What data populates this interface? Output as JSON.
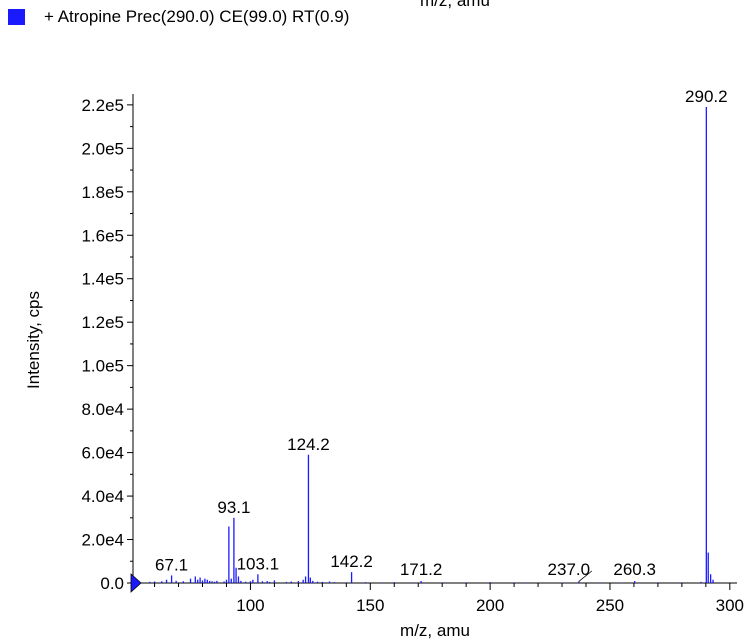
{
  "chart_data": {
    "type": "bar",
    "title": "",
    "cut_off_header_text": "m/z, amu",
    "legend": {
      "label": "+ Atropine Prec(290.0) CE(99.0) RT(0.9)",
      "color": "#1a1aff",
      "position": "top-left"
    },
    "xlabel": "m/z, amu",
    "ylabel": "Intensity, cps",
    "xlim": [
      51,
      303
    ],
    "ylim": [
      0,
      225000
    ],
    "x_ticks": [
      100,
      150,
      200,
      250,
      300
    ],
    "x_tick_labels": [
      "100",
      "150",
      "200",
      "250",
      "300"
    ],
    "y_ticks": [
      0,
      20000,
      40000,
      60000,
      80000,
      100000,
      120000,
      140000,
      160000,
      180000,
      200000,
      220000
    ],
    "y_tick_labels": [
      "0.0",
      "2.0e4",
      "4.0e4",
      "6.0e4",
      "8.0e4",
      "1.0e5",
      "1.2e5",
      "1.4e5",
      "1.6e5",
      "1.8e5",
      "2.0e5",
      "2.2e5"
    ],
    "grid": false,
    "bar_color": "#1a1aff",
    "series": [
      {
        "x": [
          58,
          60,
          63,
          65,
          67.1,
          69,
          72,
          75,
          77,
          78,
          79,
          80,
          81,
          82,
          83,
          84,
          85,
          86,
          89,
          90,
          91,
          92,
          93.1,
          94,
          95,
          96,
          98,
          100,
          101,
          103.1,
          105,
          107,
          108,
          110,
          115,
          117,
          120,
          122,
          123,
          124.2,
          125,
          126,
          128,
          130,
          133,
          135,
          140,
          142.2,
          148,
          155,
          160,
          168,
          171.2,
          180,
          190,
          200,
          210,
          215,
          230,
          237.0,
          245,
          255,
          260.3,
          270,
          280,
          288,
          290.2,
          291,
          292,
          293
        ],
        "y": [
          500,
          700,
          800,
          1500,
          3500,
          1000,
          800,
          2000,
          3000,
          1500,
          2500,
          1200,
          2000,
          1500,
          1000,
          800,
          600,
          1000,
          700,
          1500,
          26000,
          2000,
          30000,
          7000,
          3000,
          1000,
          600,
          800,
          1500,
          4000,
          800,
          900,
          500,
          1200,
          500,
          700,
          900,
          1500,
          3000,
          59000,
          2500,
          1000,
          600,
          500,
          700,
          400,
          300,
          5000,
          400,
          300,
          400,
          300,
          900,
          300,
          300,
          400,
          300,
          300,
          200,
          700,
          300,
          200,
          900,
          300,
          300,
          500,
          219000,
          14000,
          4000,
          1500
        ]
      }
    ],
    "annotations": [
      {
        "text": "67.1",
        "x": 67.1,
        "y": 3500
      },
      {
        "text": "93.1",
        "x": 93.1,
        "y": 30000
      },
      {
        "text": "103.1",
        "x": 103.1,
        "y": 4000
      },
      {
        "text": "124.2",
        "x": 124.2,
        "y": 59000
      },
      {
        "text": "142.2",
        "x": 142.2,
        "y": 5000
      },
      {
        "text": "171.2",
        "x": 171.2,
        "y": 900
      },
      {
        "text": "237.0",
        "x": 237.0,
        "y": 700
      },
      {
        "text": "260.3",
        "x": 260.3,
        "y": 900
      },
      {
        "text": "290.2",
        "x": 290.2,
        "y": 219000
      }
    ]
  }
}
